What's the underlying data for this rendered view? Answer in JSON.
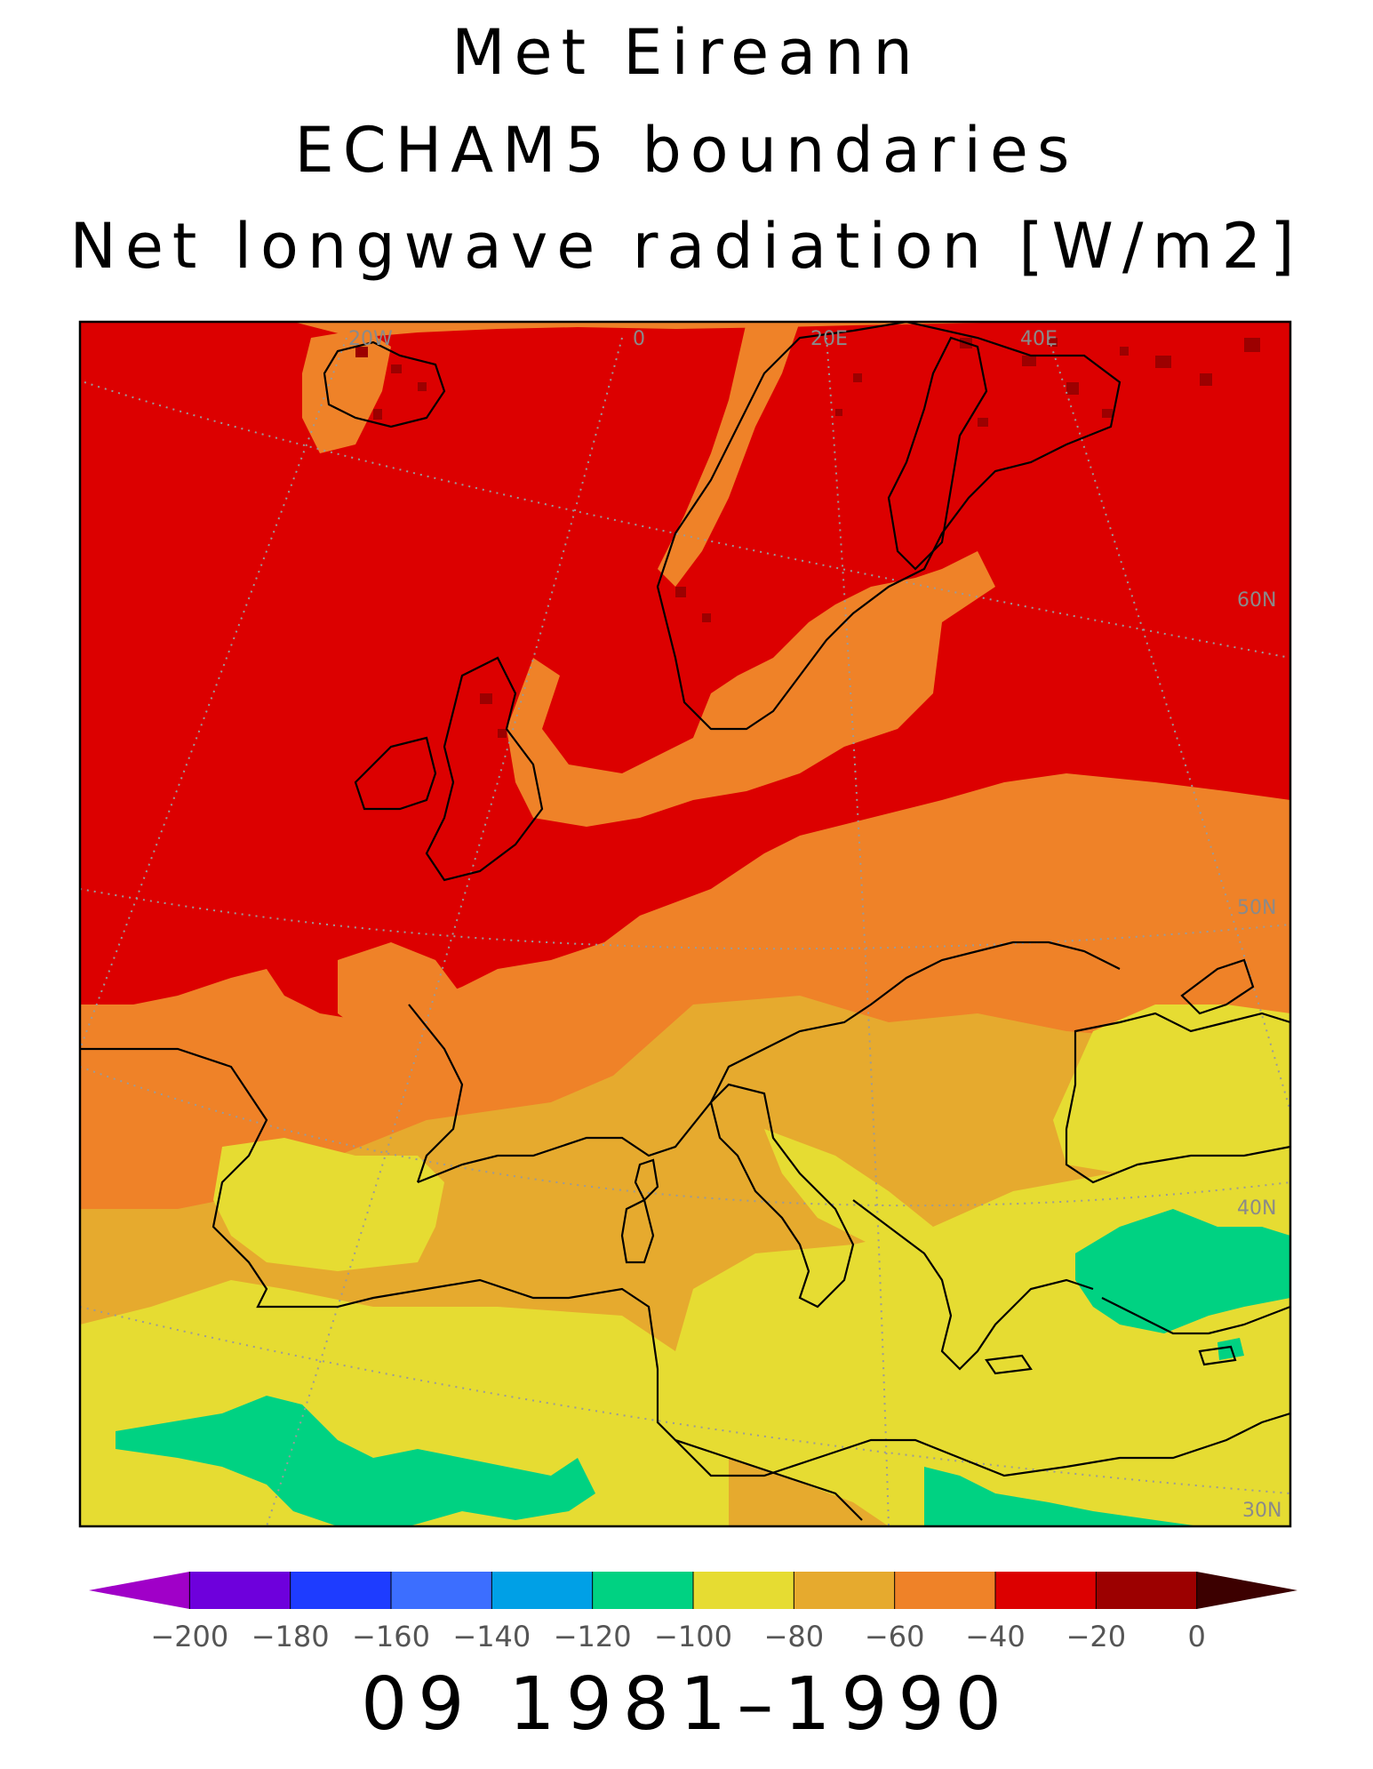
{
  "title": {
    "line1": "Met Eireann",
    "line2": "ECHAM5 boundaries",
    "line3": "Net longwave radiation [W/m2]"
  },
  "period": "09 1981–1990",
  "map": {
    "grid_labels": {
      "lon": [
        "20W",
        "0",
        "20E",
        "40E"
      ],
      "lat": [
        "60N",
        "50N",
        "40N",
        "30N"
      ]
    },
    "colors": {
      "lt40_red": "#dc0000",
      "dark_red": "#9c0000",
      "orange": "#ef8228",
      "amber": "#e6aa2e",
      "yellow": "#e6dc32",
      "green": "#00d282",
      "coast": "#000000",
      "grid": "#9a9a9a"
    }
  },
  "colorbar": {
    "labels": [
      "−200",
      "−180",
      "−160",
      "−140",
      "−120",
      "−100",
      "−80",
      "−60",
      "−40",
      "−20",
      "0"
    ],
    "colors": [
      "#a000c8",
      "#6e00dc",
      "#1e3cff",
      "#3c6eff",
      "#00a0e6",
      "#00d282",
      "#e6dc32",
      "#e6aa2e",
      "#ef8228",
      "#dc0000",
      "#9c0000",
      "#3c0000"
    ]
  }
}
